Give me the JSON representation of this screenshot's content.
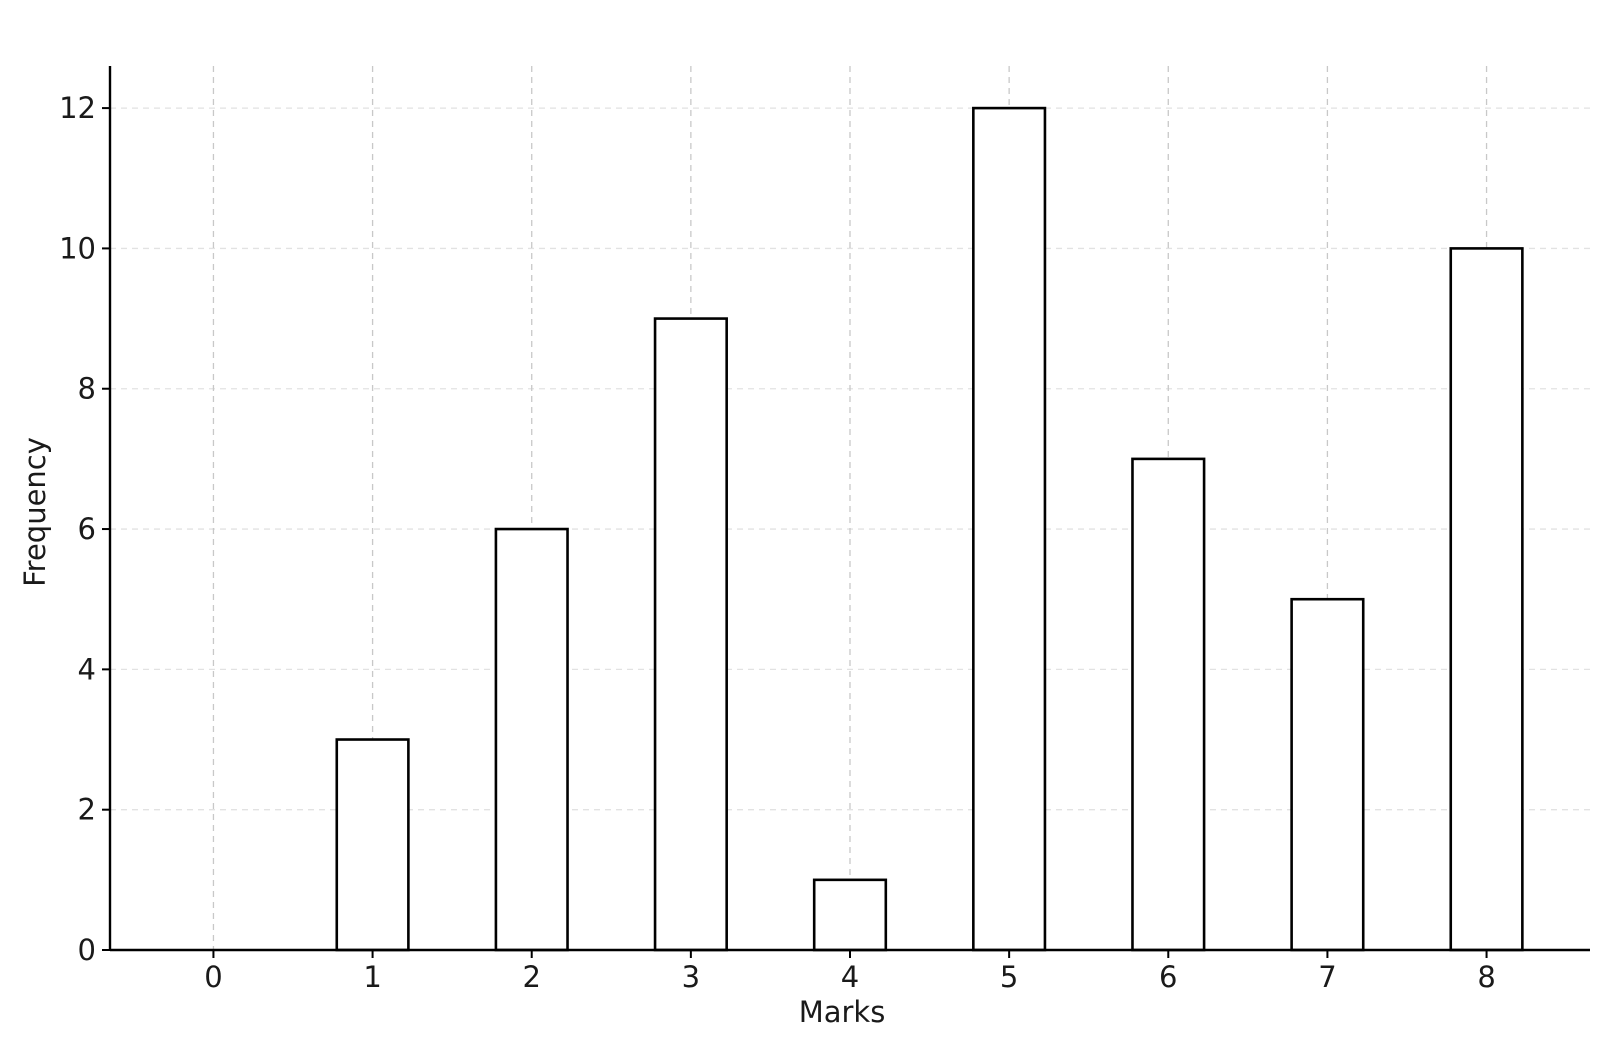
{
  "chart_data": {
    "type": "bar",
    "title": "",
    "xlabel": "Marks",
    "ylabel": "Frequency",
    "categories": [
      "0",
      "1",
      "2",
      "3",
      "4",
      "5",
      "6",
      "7",
      "8"
    ],
    "values": [
      0,
      3,
      6,
      9,
      1,
      12,
      7,
      5,
      10
    ],
    "xlim": [
      -0.65,
      8.65
    ],
    "ylim": [
      0,
      12.6
    ],
    "yticks": [
      0,
      2,
      4,
      6,
      8,
      10,
      12
    ],
    "grid": true,
    "legend": "none",
    "colors": {
      "bar_fill": "#ffffff",
      "bar_edge": "#000000",
      "grid": "#c8c8c8"
    }
  }
}
